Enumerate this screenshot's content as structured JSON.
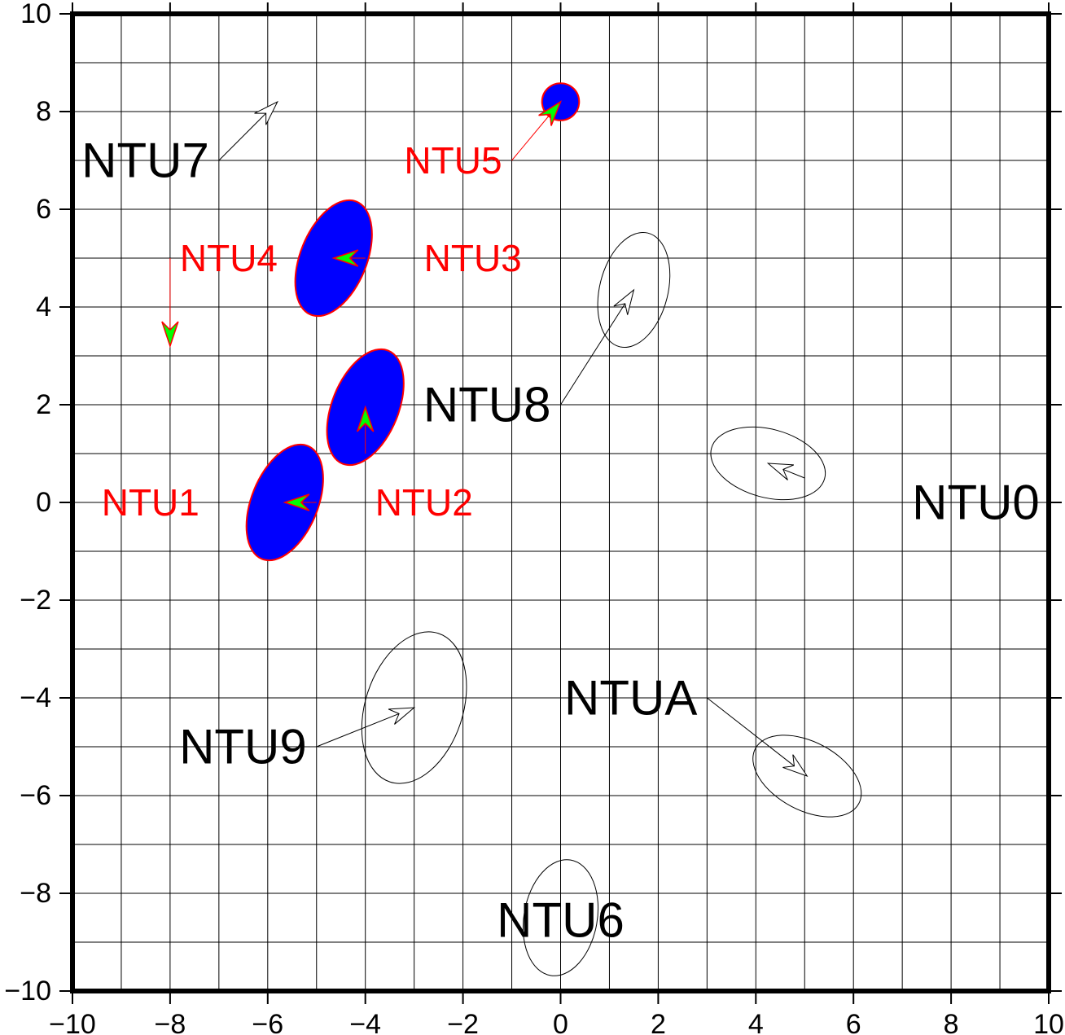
{
  "chart_data": {
    "type": "scatter",
    "title": "",
    "xlabel": "",
    "ylabel": "",
    "xlim": [
      -10,
      10
    ],
    "ylim": [
      -10,
      10
    ],
    "grid": true,
    "x_ticks": [
      -10,
      -8,
      -6,
      -4,
      -2,
      0,
      2,
      4,
      6,
      8,
      10
    ],
    "y_ticks": [
      -10,
      -8,
      -6,
      -4,
      -2,
      0,
      2,
      4,
      6,
      8,
      10
    ],
    "x_tick_labels": [
      "−10",
      "−8",
      "−6",
      "−4",
      "−2",
      "0",
      "2",
      "4",
      "6",
      "8",
      "10"
    ],
    "y_tick_labels": [
      "−10",
      "−8",
      "−6",
      "−4",
      "−2",
      "0",
      "2",
      "4",
      "6",
      "8",
      "10"
    ],
    "colors": {
      "filled_ellipse": "#0000ff",
      "red_series": "#ff0000",
      "arrow_head_fill": "#00ff00",
      "black_series": "#000000"
    },
    "vectors": [
      {
        "label": "NTU0",
        "group": "black",
        "x": 5.0,
        "y": 0.5,
        "dx": -0.75,
        "dy": 0.3,
        "ellipse": {
          "a": 1.2,
          "b": 0.7,
          "angle_deg": -15
        }
      },
      {
        "label": "NTU1",
        "group": "red",
        "x": -5.0,
        "y": 0.0,
        "dx": -0.65,
        "dy": 0.0,
        "ellipse": {
          "a": 1.25,
          "b": 0.68,
          "angle_deg": 68
        }
      },
      {
        "label": "NTU2",
        "group": "red",
        "x": -4.0,
        "y": 1.0,
        "dx": 0.0,
        "dy": 0.95,
        "ellipse": {
          "a": 1.25,
          "b": 0.68,
          "angle_deg": 68
        }
      },
      {
        "label": "NTU3",
        "group": "red",
        "x": -4.0,
        "y": 5.0,
        "dx": -0.65,
        "dy": 0.0,
        "ellipse": {
          "a": 1.25,
          "b": 0.68,
          "angle_deg": 68
        }
      },
      {
        "label": "NTU4",
        "group": "red",
        "x": -8.0,
        "y": 5.0,
        "dx": 0.0,
        "dy": -1.8,
        "ellipse": null
      },
      {
        "label": "NTU5",
        "group": "red",
        "x": -1.0,
        "y": 7.0,
        "dx": 1.0,
        "dy": 1.2,
        "ellipse": {
          "a": 0.38,
          "b": 0.38,
          "angle_deg": 0
        }
      },
      {
        "label": "NTU6",
        "group": "black",
        "x": 0.0,
        "y": -8.5,
        "dx": 0.0,
        "dy": 0.0,
        "ellipse": {
          "a": 1.2,
          "b": 0.75,
          "angle_deg": 80
        }
      },
      {
        "label": "NTU7",
        "group": "black",
        "x": -7.0,
        "y": 7.0,
        "dx": 1.2,
        "dy": 1.2,
        "ellipse": null
      },
      {
        "label": "NTU8",
        "group": "black",
        "x": 0.0,
        "y": 2.0,
        "dx": 1.5,
        "dy": 2.35,
        "ellipse": {
          "a": 1.2,
          "b": 0.7,
          "angle_deg": 76
        }
      },
      {
        "label": "NTU9",
        "group": "black",
        "x": -5.0,
        "y": -5.0,
        "dx": 2.0,
        "dy": 0.8,
        "ellipse": {
          "a": 1.6,
          "b": 1.0,
          "angle_deg": 72
        }
      },
      {
        "label": "NTUA",
        "group": "black",
        "x": 3.0,
        "y": -4.0,
        "dx": 2.05,
        "dy": -1.6,
        "ellipse": {
          "a": 1.2,
          "b": 0.7,
          "angle_deg": -28
        }
      }
    ],
    "labels": [
      {
        "text": "NTU0",
        "group": "black",
        "x": 7.2,
        "y": 0.0,
        "anchor": "left"
      },
      {
        "text": "NTU1",
        "group": "red",
        "x": -7.4,
        "y": 0.0,
        "anchor": "right"
      },
      {
        "text": "NTU2",
        "group": "red",
        "x": -3.8,
        "y": 0.0,
        "anchor": "left"
      },
      {
        "text": "NTU3",
        "group": "red",
        "x": -2.8,
        "y": 5.0,
        "anchor": "left"
      },
      {
        "text": "NTU4",
        "group": "red",
        "x": -7.8,
        "y": 5.0,
        "anchor": "left"
      },
      {
        "text": "NTU5",
        "group": "red",
        "x": -1.2,
        "y": 7.0,
        "anchor": "right"
      },
      {
        "text": "NTU6",
        "group": "black",
        "x": 0.0,
        "y": -8.55,
        "anchor": "center"
      },
      {
        "text": "NTU7",
        "group": "black",
        "x": -7.2,
        "y": 7.0,
        "anchor": "right"
      },
      {
        "text": "NTU8",
        "group": "black",
        "x": -0.2,
        "y": 2.0,
        "anchor": "right"
      },
      {
        "text": "NTU9",
        "group": "black",
        "x": -5.2,
        "y": -5.0,
        "anchor": "right"
      },
      {
        "text": "NTUA",
        "group": "black",
        "x": 2.8,
        "y": -4.0,
        "anchor": "right"
      }
    ]
  }
}
